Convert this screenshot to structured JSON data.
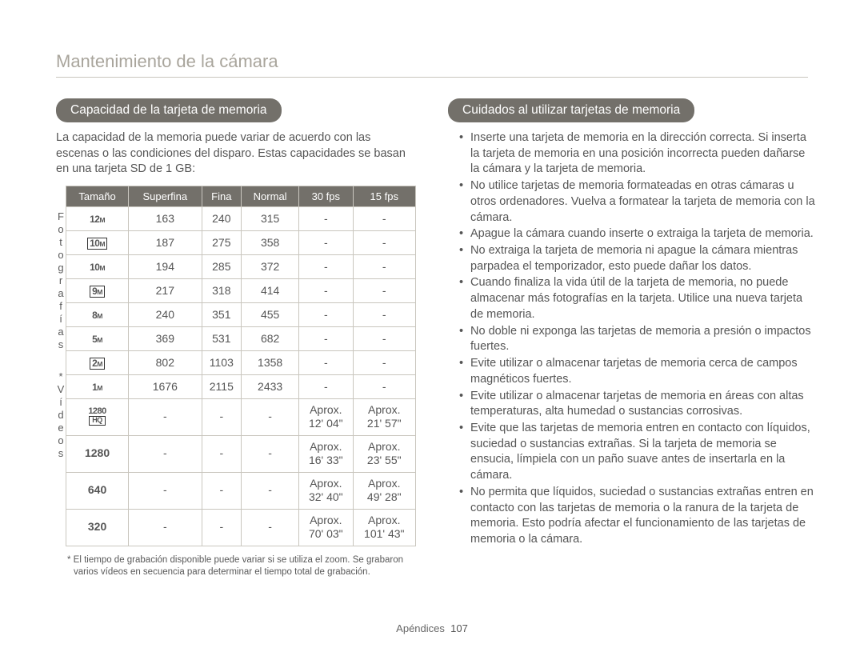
{
  "page": {
    "title": "Mantenimiento de la cámara",
    "footer_label": "Apéndices",
    "page_number": "107"
  },
  "left": {
    "header": "Capacidad de la tarjeta de memoria",
    "intro": "La capacidad de la memoria puede variar de acuerdo con las escenas o las condiciones del disparo. Estas capacidades se basan en una tarjeta SD de 1 GB:",
    "columns": [
      "Tamaño",
      "Superfina",
      "Fina",
      "Normal",
      "30 fps",
      "15 fps"
    ],
    "vertical_labels": [
      "Fotografías",
      "*",
      "Vídeos"
    ],
    "photo_rows": [
      {
        "label_main": "12",
        "label_sub": "M",
        "box": false,
        "sf": "163",
        "f": "240",
        "n": "315",
        "c30": "-",
        "c15": "-"
      },
      {
        "label_main": "10",
        "label_sub": "M",
        "box": true,
        "sf": "187",
        "f": "275",
        "n": "358",
        "c30": "-",
        "c15": "-"
      },
      {
        "label_main": "10",
        "label_sub": "M",
        "box": false,
        "sf": "194",
        "f": "285",
        "n": "372",
        "c30": "-",
        "c15": "-"
      },
      {
        "label_main": "9",
        "label_sub": "M",
        "box": true,
        "sf": "217",
        "f": "318",
        "n": "414",
        "c30": "-",
        "c15": "-"
      },
      {
        "label_main": "8",
        "label_sub": "M",
        "box": false,
        "sf": "240",
        "f": "351",
        "n": "455",
        "c30": "-",
        "c15": "-"
      },
      {
        "label_main": "5",
        "label_sub": "M",
        "box": false,
        "sf": "369",
        "f": "531",
        "n": "682",
        "c30": "-",
        "c15": "-"
      },
      {
        "label_main": "2",
        "label_sub": "M",
        "box": true,
        "sf": "802",
        "f": "1103",
        "n": "1358",
        "c30": "-",
        "c15": "-"
      },
      {
        "label_main": "1",
        "label_sub": "M",
        "box": false,
        "sf": "1676",
        "f": "2115",
        "n": "2433",
        "c30": "-",
        "c15": "-"
      }
    ],
    "video_rows": [
      {
        "label": "1280",
        "hd": true,
        "sf": "-",
        "f": "-",
        "n": "-",
        "c30a": "Aprox.",
        "c30b": "12' 04\"",
        "c15a": "Aprox.",
        "c15b": "21' 57\""
      },
      {
        "label": "1280",
        "hd": false,
        "sf": "-",
        "f": "-",
        "n": "-",
        "c30a": "Aprox.",
        "c30b": "16' 33\"",
        "c15a": "Aprox.",
        "c15b": "23' 55\""
      },
      {
        "label": "640",
        "hd": false,
        "sf": "-",
        "f": "-",
        "n": "-",
        "c30a": "Aprox.",
        "c30b": "32' 40\"",
        "c15a": "Aprox.",
        "c15b": "49' 28\""
      },
      {
        "label": "320",
        "hd": false,
        "sf": "-",
        "f": "-",
        "n": "-",
        "c30a": "Aprox.",
        "c30b": "70' 03\"",
        "c15a": "Aprox.",
        "c15b": "101' 43\""
      }
    ],
    "footnote": "* El tiempo de grabación disponible puede variar si se utiliza el zoom. Se grabaron varios vídeos en secuencia para determinar el tiempo total de grabación."
  },
  "right": {
    "header": "Cuidados al utilizar tarjetas de memoria",
    "bullets": [
      "Inserte una tarjeta de memoria en la dirección correcta. Si inserta la tarjeta de memoria en una posición incorrecta pueden dañarse la cámara y la tarjeta de memoria.",
      "No utilice tarjetas de memoria formateadas en otras cámaras u otros ordenadores. Vuelva a formatear la tarjeta de memoria con la cámara.",
      "Apague la cámara cuando inserte o extraiga la tarjeta de memoria.",
      "No extraiga la tarjeta de memoria ni apague la cámara mientras parpadea el temporizador, esto puede dañar los datos.",
      "Cuando finaliza la vida útil de la tarjeta de memoria, no puede almacenar más fotografías en la tarjeta. Utilice una nueva tarjeta de memoria.",
      "No doble ni exponga las tarjetas de memoria a presión o impactos fuertes.",
      "Evite utilizar o almacenar tarjetas de memoria cerca de campos magnéticos fuertes.",
      "Evite utilizar o almacenar tarjetas de memoria en áreas con altas temperaturas, alta humedad o sustancias corrosivas.",
      "Evite que las tarjetas de memoria entren en contacto con líquidos, suciedad o sustancias extrañas. Si la tarjeta de memoria se ensucia, límpiela con un paño suave antes de insertarla en la cámara.",
      "No permita que líquidos, suciedad o sustancias extrañas entren en contacto con las tarjetas de memoria o la ranura de la tarjeta de memoria. Esto podría afectar el funcionamiento de las tarjetas de memoria o la cámara."
    ]
  },
  "colors": {
    "header_bg": "#73706a",
    "border": "#c9c6be",
    "title": "#a9a59c",
    "text": "#555555"
  }
}
